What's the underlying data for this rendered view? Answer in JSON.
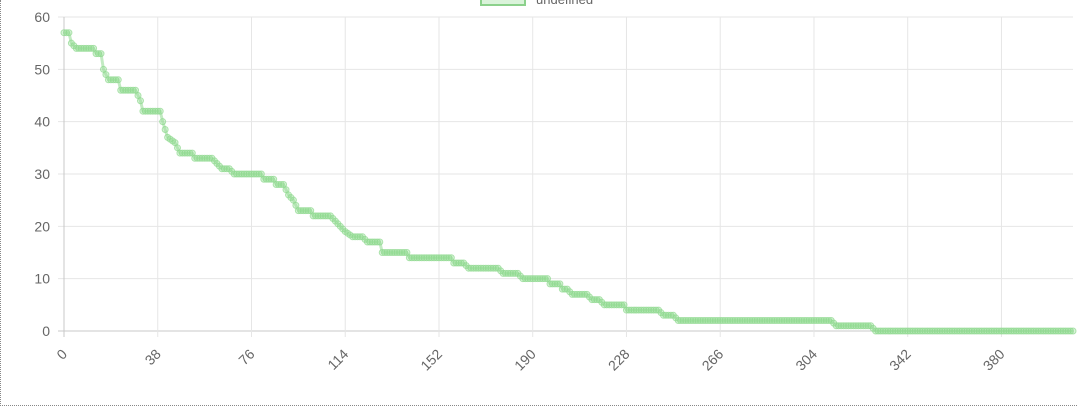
{
  "legend": {
    "label": "undefined"
  },
  "colors": {
    "series": "#8fd88f",
    "series_fill": "rgba(150,220,150,0.35)",
    "grid": "#e6e6e6",
    "axis": "#c8c8c8"
  },
  "chart_data": {
    "type": "line",
    "grid": true,
    "legend_position": "top",
    "ylim": [
      0,
      60
    ],
    "xlim": [
      0,
      409
    ],
    "y_ticks": [
      0,
      10,
      20,
      30,
      40,
      50,
      60
    ],
    "x_ticks": [
      0,
      38,
      76,
      114,
      152,
      190,
      228,
      266,
      304,
      342,
      380
    ],
    "series": [
      {
        "name": "undefined",
        "points": [
          [
            0,
            57
          ],
          [
            2,
            57
          ],
          [
            3,
            55
          ],
          [
            5,
            54
          ],
          [
            12,
            54
          ],
          [
            13,
            53
          ],
          [
            15,
            53
          ],
          [
            16,
            50
          ],
          [
            18,
            48
          ],
          [
            22,
            48
          ],
          [
            23,
            46
          ],
          [
            29,
            46
          ],
          [
            31,
            44
          ],
          [
            32,
            42
          ],
          [
            39,
            42
          ],
          [
            40,
            40
          ],
          [
            42,
            37
          ],
          [
            45,
            36
          ],
          [
            47,
            34
          ],
          [
            52,
            34
          ],
          [
            53,
            33
          ],
          [
            60,
            33
          ],
          [
            62,
            32
          ],
          [
            64,
            31
          ],
          [
            67,
            31
          ],
          [
            69,
            30
          ],
          [
            80,
            30
          ],
          [
            81,
            29
          ],
          [
            85,
            29
          ],
          [
            86,
            28
          ],
          [
            89,
            28
          ],
          [
            91,
            26
          ],
          [
            93,
            25
          ],
          [
            95,
            23
          ],
          [
            100,
            23
          ],
          [
            101,
            22
          ],
          [
            108,
            22
          ],
          [
            110,
            21
          ],
          [
            112,
            20
          ],
          [
            114,
            19
          ],
          [
            117,
            18
          ],
          [
            121,
            18
          ],
          [
            123,
            17
          ],
          [
            128,
            17
          ],
          [
            129,
            15
          ],
          [
            139,
            15
          ],
          [
            140,
            14
          ],
          [
            157,
            14
          ],
          [
            158,
            13
          ],
          [
            162,
            13
          ],
          [
            164,
            12
          ],
          [
            176,
            12
          ],
          [
            178,
            11
          ],
          [
            184,
            11
          ],
          [
            186,
            10
          ],
          [
            196,
            10
          ],
          [
            197,
            9
          ],
          [
            201,
            9
          ],
          [
            202,
            8
          ],
          [
            204,
            8
          ],
          [
            206,
            7
          ],
          [
            212,
            7
          ],
          [
            214,
            6
          ],
          [
            217,
            6
          ],
          [
            219,
            5
          ],
          [
            227,
            5
          ],
          [
            228,
            4
          ],
          [
            241,
            4
          ],
          [
            243,
            3
          ],
          [
            247,
            3
          ],
          [
            249,
            2
          ],
          [
            311,
            2
          ],
          [
            313,
            1
          ],
          [
            327,
            1
          ],
          [
            329,
            0
          ],
          [
            409,
            0
          ]
        ]
      }
    ]
  }
}
